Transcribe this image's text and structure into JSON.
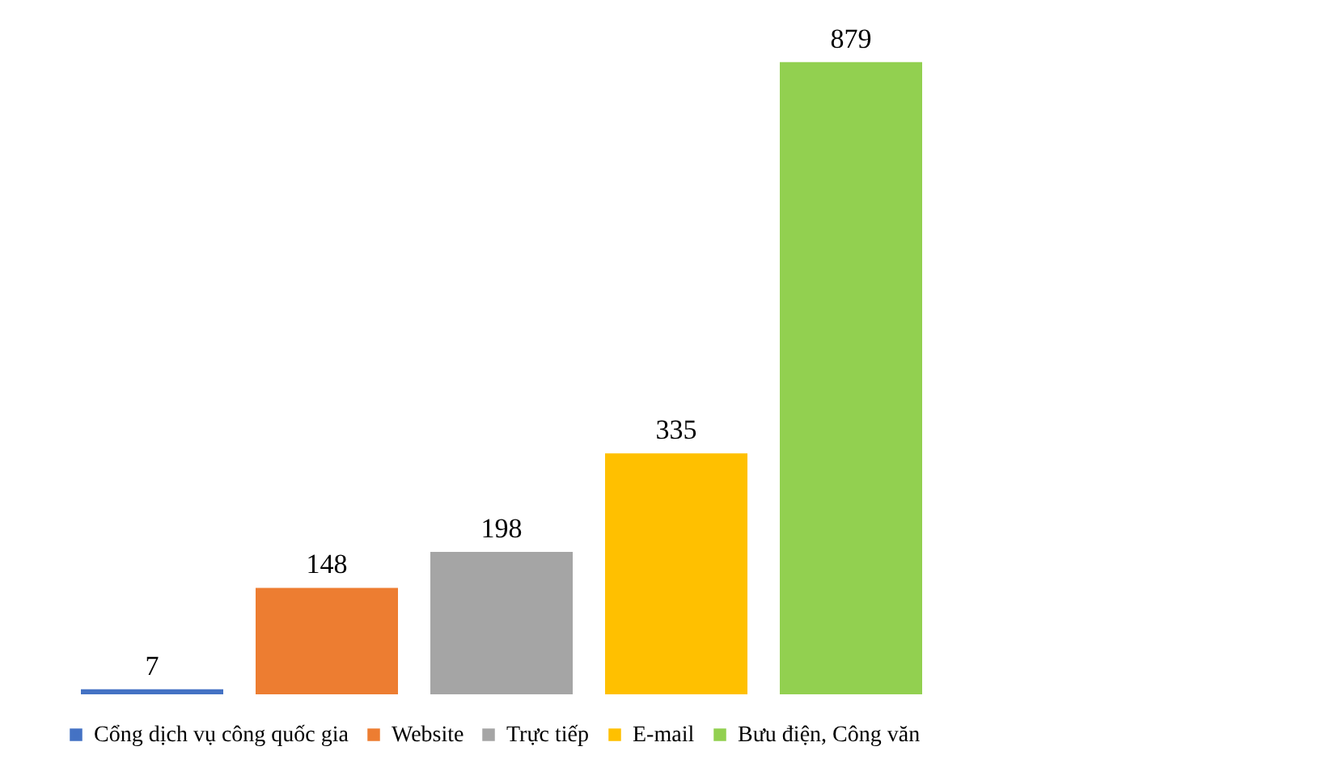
{
  "chart_data": {
    "type": "bar",
    "categories": [
      null,
      null,
      null,
      null,
      null
    ],
    "stacked": true,
    "series": [
      {
        "name": "Cổng dịch vụ công quốc gia",
        "color": "#4472c4",
        "values": [
          7,
          null,
          null,
          null,
          null
        ]
      },
      {
        "name": "Website",
        "color": "#ed7d31",
        "values": [
          null,
          148,
          null,
          null,
          null
        ]
      },
      {
        "name": "Trực tiếp",
        "color": "#a5a5a5",
        "values": [
          null,
          null,
          198,
          null,
          null
        ]
      },
      {
        "name": "E-mail",
        "color": "#ffc000",
        "values": [
          null,
          null,
          null,
          335,
          null
        ]
      },
      {
        "name": "Bưu điện,  Công văn",
        "color": "#92d050",
        "values": [
          null,
          null,
          null,
          null,
          879
        ]
      }
    ],
    "data_labels": true,
    "legend": "bottom",
    "grid": false
  }
}
